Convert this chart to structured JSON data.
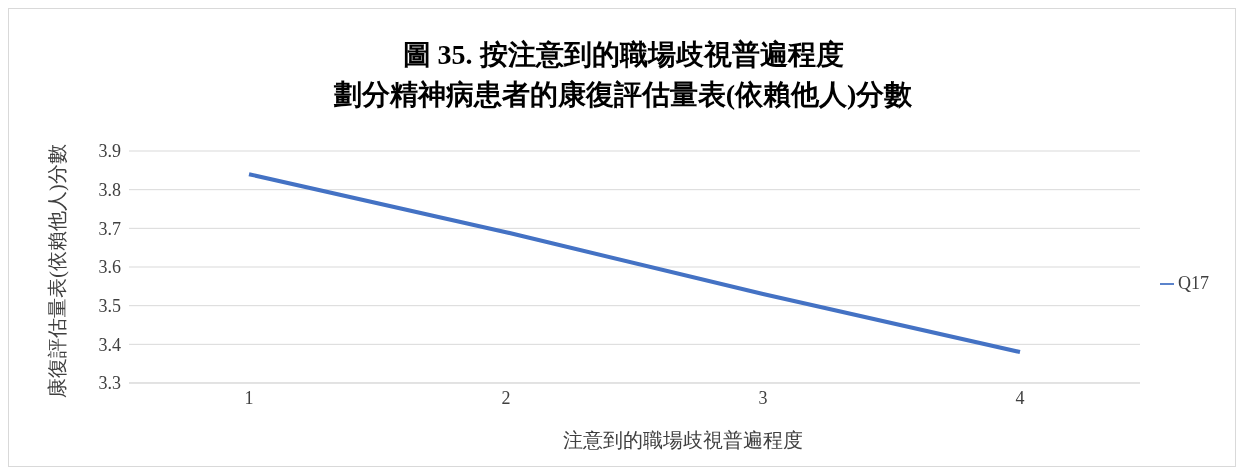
{
  "chart_data": {
    "type": "line",
    "title": "圖 35. 按注意到的職場歧視普遍程度",
    "subtitle": "劃分精神病患者的康復評估量表(依賴他人)分數",
    "xlabel": "注意到的職場歧視普遍程度",
    "ylabel": "康復評估量表(依賴他人)分數",
    "categories": [
      "1",
      "2",
      "3",
      "4"
    ],
    "series": [
      {
        "name": "Q17",
        "color": "#4472c4",
        "values": [
          3.84,
          3.69,
          3.53,
          3.38
        ]
      }
    ],
    "ylim": [
      3.3,
      3.9
    ],
    "yticks": [
      3.3,
      3.4,
      3.5,
      3.6,
      3.7,
      3.8,
      3.9
    ],
    "grid": "y",
    "legend": "right",
    "marker": "none",
    "line_style": "solid"
  }
}
